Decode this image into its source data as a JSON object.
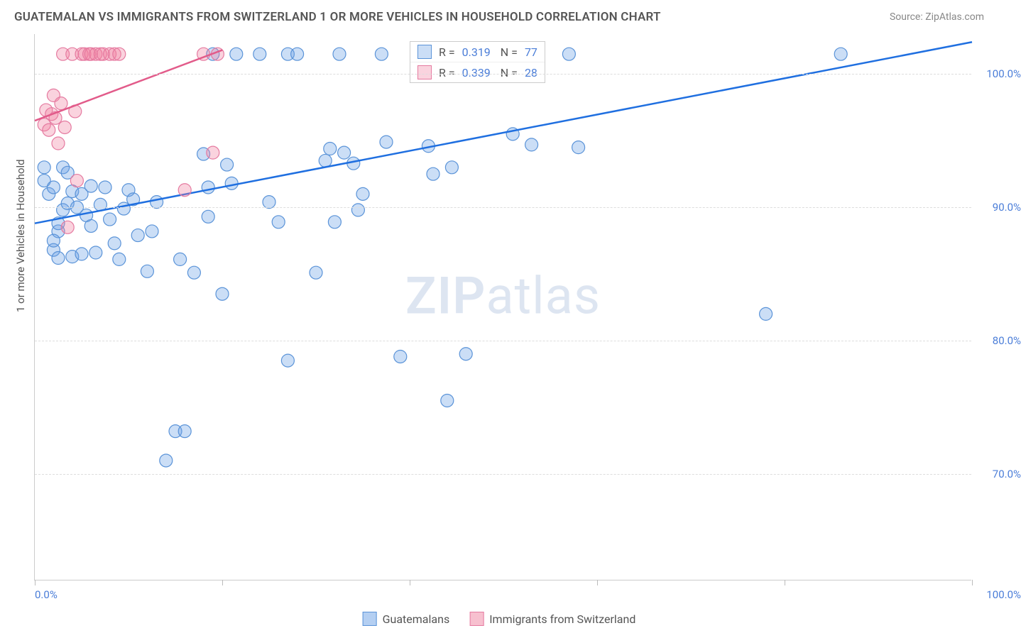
{
  "chart": {
    "type": "scatter",
    "title": "GUATEMALAN VS IMMIGRANTS FROM SWITZERLAND 1 OR MORE VEHICLES IN HOUSEHOLD CORRELATION CHART",
    "source": "Source: ZipAtlas.com",
    "ylabel": "1 or more Vehicles in Household",
    "watermark_a": "ZIP",
    "watermark_b": "atlas",
    "background_color": "#ffffff",
    "grid_color": "#dddddd",
    "xlim": [
      0,
      100
    ],
    "ylim": [
      62,
      103
    ],
    "xticks": [
      0,
      20,
      40,
      60,
      80,
      100
    ],
    "xtick_labels_shown": {
      "0": "0.0%",
      "100": "100.0%"
    },
    "yticks": [
      70,
      80,
      90,
      100
    ],
    "ytick_labels": [
      "70.0%",
      "80.0%",
      "90.0%",
      "100.0%"
    ],
    "marker_radius": 9,
    "marker_stroke_width": 1.2,
    "trend_line_width": 2.5,
    "series": [
      {
        "name": "Guatemalans",
        "color_fill": "rgba(106,160,230,0.35)",
        "color_stroke": "#5a93d8",
        "trend_color": "#1f6fe0",
        "R": 0.319,
        "N": 77,
        "trend": {
          "x1": 0,
          "y1": 88.8,
          "x2": 100,
          "y2": 102.4
        },
        "points": [
          [
            1,
            92
          ],
          [
            1,
            93
          ],
          [
            1.5,
            91
          ],
          [
            2,
            91.5
          ],
          [
            2,
            86.8
          ],
          [
            2.5,
            86.2
          ],
          [
            2.5,
            88.2
          ],
          [
            2.5,
            88.8
          ],
          [
            3,
            93
          ],
          [
            3,
            89.8
          ],
          [
            3.5,
            90.3
          ],
          [
            4,
            91.2
          ],
          [
            4,
            86.3
          ],
          [
            4.5,
            90
          ],
          [
            5,
            91
          ],
          [
            5,
            86.5
          ],
          [
            5.5,
            89.4
          ],
          [
            6,
            88.6
          ],
          [
            6,
            91.6
          ],
          [
            6.5,
            86.6
          ],
          [
            7,
            90.2
          ],
          [
            7.5,
            91.5
          ],
          [
            8,
            89.1
          ],
          [
            8.5,
            87.3
          ],
          [
            9,
            86.1
          ],
          [
            9.5,
            89.9
          ],
          [
            10,
            91.3
          ],
          [
            10.5,
            90.6
          ],
          [
            11,
            87.9
          ],
          [
            12,
            85.2
          ],
          [
            12.5,
            88.2
          ],
          [
            13,
            90.4
          ],
          [
            14,
            71
          ],
          [
            15,
            73.2
          ],
          [
            15.5,
            86.1
          ],
          [
            16,
            73.2
          ],
          [
            17,
            85.1
          ],
          [
            18,
            94
          ],
          [
            18.5,
            89.3
          ],
          [
            18.5,
            91.5
          ],
          [
            19,
            101.5
          ],
          [
            20,
            83.5
          ],
          [
            20.5,
            93.2
          ],
          [
            21,
            91.8
          ],
          [
            21.5,
            101.5
          ],
          [
            24,
            101.5
          ],
          [
            25,
            90.4
          ],
          [
            26,
            88.9
          ],
          [
            27,
            78.5
          ],
          [
            27,
            101.5
          ],
          [
            28,
            101.5
          ],
          [
            30,
            85.1
          ],
          [
            31,
            93.5
          ],
          [
            31.5,
            94.4
          ],
          [
            32,
            88.9
          ],
          [
            32.5,
            101.5
          ],
          [
            33,
            94.1
          ],
          [
            34,
            93.3
          ],
          [
            34.5,
            89.8
          ],
          [
            35,
            91
          ],
          [
            37,
            101.5
          ],
          [
            37.5,
            94.9
          ],
          [
            39,
            78.8
          ],
          [
            42,
            94.6
          ],
          [
            42.5,
            92.5
          ],
          [
            44,
            75.5
          ],
          [
            44,
            101.5
          ],
          [
            44.5,
            93
          ],
          [
            46,
            79
          ],
          [
            51,
            95.5
          ],
          [
            53,
            94.7
          ],
          [
            58,
            94.5
          ],
          [
            57,
            101.5
          ],
          [
            78,
            82
          ],
          [
            86,
            101.5
          ],
          [
            2,
            87.5
          ],
          [
            3.5,
            92.6
          ]
        ]
      },
      {
        "name": "Immigrants from Switzerland",
        "color_fill": "rgba(240,130,160,0.35)",
        "color_stroke": "#e57aa0",
        "trend_color": "#e25b8a",
        "R": 0.339,
        "N": 28,
        "trend": {
          "x1": 0,
          "y1": 96.5,
          "x2": 20,
          "y2": 101.8
        },
        "points": [
          [
            1,
            96.2
          ],
          [
            1.2,
            97.3
          ],
          [
            1.5,
            95.8
          ],
          [
            1.8,
            97.0
          ],
          [
            2,
            98.4
          ],
          [
            2.2,
            96.7
          ],
          [
            2.5,
            94.8
          ],
          [
            2.8,
            97.8
          ],
          [
            3,
            101.5
          ],
          [
            3.2,
            96.0
          ],
          [
            3.5,
            88.5
          ],
          [
            4,
            101.5
          ],
          [
            4.3,
            97.2
          ],
          [
            4.5,
            92.0
          ],
          [
            5,
            101.5
          ],
          [
            5.3,
            101.5
          ],
          [
            5.8,
            101.5
          ],
          [
            6,
            101.5
          ],
          [
            6.5,
            101.5
          ],
          [
            7,
            101.5
          ],
          [
            7.3,
            101.5
          ],
          [
            8,
            101.5
          ],
          [
            8.5,
            101.5
          ],
          [
            9,
            101.5
          ],
          [
            16,
            91.3
          ],
          [
            18,
            101.5
          ],
          [
            19,
            94.1
          ],
          [
            19.5,
            101.5
          ]
        ]
      }
    ],
    "bottom_legend": [
      {
        "label": "Guatemalans",
        "fill": "rgba(106,160,230,0.5)",
        "stroke": "#5a93d8"
      },
      {
        "label": "Immigrants from Switzerland",
        "fill": "rgba(240,130,160,0.5)",
        "stroke": "#e57aa0"
      }
    ]
  }
}
